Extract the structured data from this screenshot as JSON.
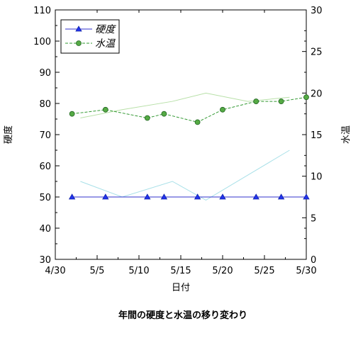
{
  "chart_data": {
    "type": "line",
    "title": "年間の硬度と水温の移り変わり",
    "xlabel": "日付",
    "ylabel_left": "硬度",
    "ylabel_right": "水温",
    "x_ticks": [
      "4/30",
      "5/5",
      "5/10",
      "5/15",
      "5/20",
      "5/25",
      "5/30"
    ],
    "x_tick_days": [
      0,
      5,
      10,
      15,
      20,
      25,
      30
    ],
    "xlim_days": [
      0,
      30
    ],
    "ylim_left": [
      30,
      110
    ],
    "ylim_right": [
      0,
      30
    ],
    "yticks_left": [
      30,
      40,
      50,
      60,
      70,
      80,
      90,
      100,
      110
    ],
    "yticks_right": [
      0,
      5,
      10,
      15,
      20,
      25,
      30
    ],
    "grid": false,
    "legend_position": "top-left",
    "series": [
      {
        "name": "硬度",
        "axis": "left",
        "color": "#3333cc",
        "marker": "triangle",
        "x_days": [
          2,
          6,
          11,
          13,
          17,
          20,
          24,
          27,
          30
        ],
        "values": [
          50,
          50,
          50,
          50,
          50,
          50,
          50,
          50,
          50
        ]
      },
      {
        "name": "水温",
        "axis": "right",
        "color": "#339933",
        "marker": "circle",
        "x_days": [
          2,
          6,
          11,
          13,
          17,
          20,
          24,
          27,
          30
        ],
        "values": [
          17.5,
          18,
          17,
          17.5,
          16.5,
          18,
          19,
          19,
          19.5
        ]
      }
    ],
    "trend_lines": [
      {
        "axis": "left",
        "color": "#a8e0e8",
        "x_days": [
          3,
          8,
          14,
          18,
          23,
          28
        ],
        "values": [
          55,
          50,
          55,
          49,
          57,
          65
        ]
      },
      {
        "axis": "right",
        "color": "#b8e0a8",
        "x_days": [
          3,
          8,
          14,
          18,
          23,
          28
        ],
        "values": [
          17,
          18,
          19,
          20,
          19,
          19.5
        ]
      }
    ]
  }
}
